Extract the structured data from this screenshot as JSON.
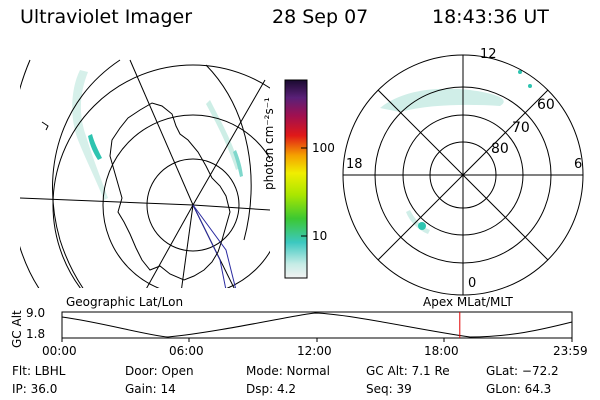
{
  "header": {
    "instrument": "Ultraviolet Imager",
    "date": "28 Sep 07",
    "time": "18:43:36 UT"
  },
  "colorbar": {
    "unit_label": "photon cm⁻²s⁻¹",
    "ticks": [
      "100",
      "10"
    ]
  },
  "polar_plot": {
    "mlt_labels": [
      "12",
      "18",
      "6",
      "0"
    ],
    "mlat_labels": [
      "60",
      "70",
      "80"
    ]
  },
  "projection_labels": {
    "left": "Geographic Lat/Lon",
    "right": "Apex MLat/MLT"
  },
  "altitude_strip": {
    "ylabel": "GC Alt",
    "ticks": [
      "9.0",
      "1.8"
    ],
    "time_ticks": [
      "00:00",
      "06:00",
      "12:00",
      "18:00",
      "23:59"
    ],
    "current_time_fraction": 0.78
  },
  "status": {
    "filter": "Flt: LBHL",
    "door": "Door: Open",
    "mode": "Mode: Normal",
    "gc_alt": "GC Alt: 7.1 Re",
    "glat": "GLat: −72.2",
    "ip": "IP: 36.0",
    "gain": "Gain: 14",
    "dsp": "Dsp:     4.2",
    "seq": "Seq: 39",
    "glon": "GLon:  64.3"
  },
  "colors": {
    "aurora_faint": "#bfe8e0",
    "aurora_bright": "#2ec4b0",
    "time_marker": "#e00000"
  }
}
